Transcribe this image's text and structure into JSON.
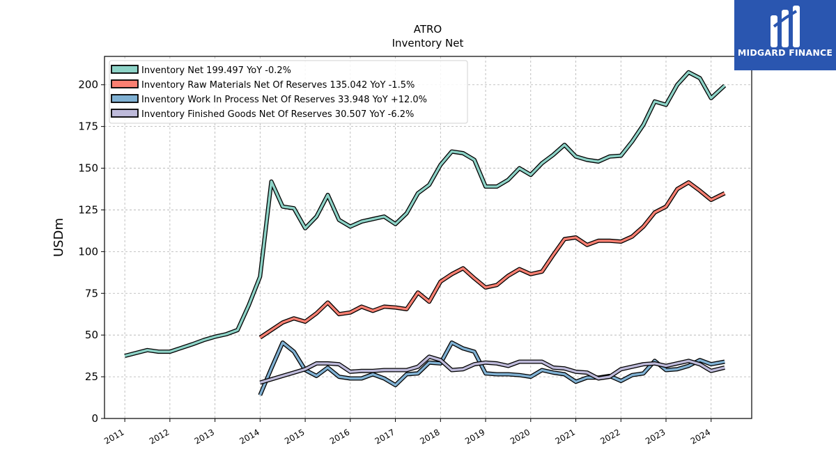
{
  "brand": {
    "name": "MIDGARD FINANCE",
    "logo_icon": "midgard-logo-icon",
    "bg_color": "#2a56b0"
  },
  "chart_data": {
    "type": "line",
    "title": "ATRO",
    "subtitle": "Inventory Net",
    "xlabel": "",
    "ylabel": "USDm",
    "xlim": [
      2010.55,
      2024.9
    ],
    "ylim": [
      0,
      217
    ],
    "yticks": [
      0,
      25,
      50,
      75,
      100,
      125,
      150,
      175,
      200
    ],
    "xticks": [
      2011,
      2012,
      2013,
      2014,
      2015,
      2016,
      2017,
      2018,
      2019,
      2020,
      2021,
      2022,
      2023,
      2024
    ],
    "xtick_labels": [
      "2011",
      "2012",
      "2013",
      "2014",
      "2015",
      "2016",
      "2017",
      "2018",
      "2019",
      "2020",
      "2021",
      "2022",
      "2023",
      "2024"
    ],
    "grid": true,
    "legend_position": "top-left",
    "series": [
      {
        "name": "Inventory Net  199.497 YoY -0.2%",
        "color": "#8dd3c7",
        "points": [
          [
            2011.0,
            37.5
          ],
          [
            2011.5,
            41.0
          ],
          [
            2011.75,
            40.0
          ],
          [
            2012.0,
            40.0
          ],
          [
            2012.5,
            44.5
          ],
          [
            2012.75,
            47.0
          ],
          [
            2013.0,
            49.0
          ],
          [
            2013.25,
            50.5
          ],
          [
            2013.5,
            53.0
          ],
          [
            2013.75,
            68.0
          ],
          [
            2014.0,
            85.0
          ],
          [
            2014.25,
            142.0
          ],
          [
            2014.5,
            127.0
          ],
          [
            2014.75,
            126.0
          ],
          [
            2015.0,
            114.0
          ],
          [
            2015.25,
            121.0
          ],
          [
            2015.5,
            134.0
          ],
          [
            2015.75,
            119.0
          ],
          [
            2016.0,
            115.0
          ],
          [
            2016.25,
            118.0
          ],
          [
            2016.5,
            119.5
          ],
          [
            2016.75,
            121.0
          ],
          [
            2017.0,
            116.5
          ],
          [
            2017.25,
            123.0
          ],
          [
            2017.5,
            135.0
          ],
          [
            2017.75,
            140.0
          ],
          [
            2018.0,
            152.0
          ],
          [
            2018.25,
            160.0
          ],
          [
            2018.5,
            159.0
          ],
          [
            2018.75,
            155.0
          ],
          [
            2019.0,
            139.0
          ],
          [
            2019.25,
            139.0
          ],
          [
            2019.5,
            143.0
          ],
          [
            2019.75,
            150.0
          ],
          [
            2020.0,
            146.0
          ],
          [
            2020.25,
            153.0
          ],
          [
            2020.5,
            158.0
          ],
          [
            2020.75,
            164.0
          ],
          [
            2021.0,
            157.0
          ],
          [
            2021.25,
            155.0
          ],
          [
            2021.5,
            154.0
          ],
          [
            2021.75,
            157.0
          ],
          [
            2022.0,
            157.5
          ],
          [
            2022.25,
            166.0
          ],
          [
            2022.5,
            176.0
          ],
          [
            2022.75,
            190.0
          ],
          [
            2023.0,
            188.0
          ],
          [
            2023.25,
            200.0
          ],
          [
            2023.5,
            207.5
          ],
          [
            2023.75,
            204.0
          ],
          [
            2024.0,
            192.0
          ],
          [
            2024.3,
            199.5
          ]
        ]
      },
      {
        "name": "Inventory Raw Materials Net Of Reserves  135.042 YoY -1.5%",
        "color": "#fb8072",
        "points": [
          [
            2014.0,
            48.5
          ],
          [
            2014.25,
            53.0
          ],
          [
            2014.5,
            57.5
          ],
          [
            2014.75,
            60.0
          ],
          [
            2015.0,
            58.0
          ],
          [
            2015.25,
            63.0
          ],
          [
            2015.5,
            69.5
          ],
          [
            2015.75,
            62.5
          ],
          [
            2016.0,
            63.5
          ],
          [
            2016.25,
            67.0
          ],
          [
            2016.5,
            64.5
          ],
          [
            2016.75,
            67.0
          ],
          [
            2017.0,
            66.5
          ],
          [
            2017.25,
            65.5
          ],
          [
            2017.5,
            75.5
          ],
          [
            2017.75,
            70.0
          ],
          [
            2018.0,
            82.0
          ],
          [
            2018.25,
            86.5
          ],
          [
            2018.5,
            90.0
          ],
          [
            2018.75,
            84.0
          ],
          [
            2019.0,
            78.5
          ],
          [
            2019.25,
            80.0
          ],
          [
            2019.5,
            85.5
          ],
          [
            2019.75,
            89.5
          ],
          [
            2020.0,
            86.5
          ],
          [
            2020.25,
            88.0
          ],
          [
            2020.5,
            98.0
          ],
          [
            2020.75,
            107.5
          ],
          [
            2021.0,
            108.5
          ],
          [
            2021.25,
            104.0
          ],
          [
            2021.5,
            106.5
          ],
          [
            2021.75,
            106.5
          ],
          [
            2022.0,
            106.0
          ],
          [
            2022.25,
            109.0
          ],
          [
            2022.5,
            115.0
          ],
          [
            2022.75,
            123.5
          ],
          [
            2023.0,
            127.0
          ],
          [
            2023.25,
            137.5
          ],
          [
            2023.5,
            141.5
          ],
          [
            2023.75,
            136.5
          ],
          [
            2024.0,
            131.0
          ],
          [
            2024.3,
            135.0
          ]
        ]
      },
      {
        "name": "Inventory Work In Process Net Of Reserves  33.948 YoY +12.0%",
        "color": "#80b1d3",
        "points": [
          [
            2014.0,
            14.0
          ],
          [
            2014.25,
            30.0
          ],
          [
            2014.5,
            45.5
          ],
          [
            2014.75,
            40.0
          ],
          [
            2015.0,
            29.0
          ],
          [
            2015.25,
            25.5
          ],
          [
            2015.5,
            30.5
          ],
          [
            2015.75,
            25.0
          ],
          [
            2016.0,
            24.0
          ],
          [
            2016.25,
            24.0
          ],
          [
            2016.5,
            26.5
          ],
          [
            2016.75,
            24.0
          ],
          [
            2017.0,
            20.0
          ],
          [
            2017.25,
            26.5
          ],
          [
            2017.5,
            27.0
          ],
          [
            2017.75,
            33.5
          ],
          [
            2018.0,
            33.0
          ],
          [
            2018.25,
            45.5
          ],
          [
            2018.5,
            42.0
          ],
          [
            2018.75,
            40.0
          ],
          [
            2019.0,
            27.0
          ],
          [
            2019.25,
            26.5
          ],
          [
            2019.5,
            26.5
          ],
          [
            2019.75,
            26.0
          ],
          [
            2020.0,
            25.0
          ],
          [
            2020.25,
            29.0
          ],
          [
            2020.5,
            27.5
          ],
          [
            2020.75,
            26.5
          ],
          [
            2021.0,
            22.0
          ],
          [
            2021.25,
            24.5
          ],
          [
            2021.5,
            24.5
          ],
          [
            2021.75,
            25.5
          ],
          [
            2022.0,
            22.5
          ],
          [
            2022.25,
            26.0
          ],
          [
            2022.5,
            27.0
          ],
          [
            2022.75,
            34.5
          ],
          [
            2023.0,
            29.0
          ],
          [
            2023.25,
            29.5
          ],
          [
            2023.5,
            31.5
          ],
          [
            2023.75,
            35.0
          ],
          [
            2024.0,
            32.5
          ],
          [
            2024.3,
            34.0
          ]
        ]
      },
      {
        "name": "Inventory Finished Goods Net Of Reserves  30.507 YoY -6.2%",
        "color": "#bebada",
        "points": [
          [
            2014.0,
            21.5
          ],
          [
            2014.25,
            23.5
          ],
          [
            2014.5,
            25.5
          ],
          [
            2014.75,
            27.5
          ],
          [
            2015.0,
            29.5
          ],
          [
            2015.25,
            33.0
          ],
          [
            2015.5,
            33.0
          ],
          [
            2015.75,
            32.5
          ],
          [
            2016.0,
            28.0
          ],
          [
            2016.25,
            28.5
          ],
          [
            2016.5,
            28.5
          ],
          [
            2016.75,
            29.0
          ],
          [
            2017.0,
            29.0
          ],
          [
            2017.25,
            29.0
          ],
          [
            2017.5,
            31.0
          ],
          [
            2017.75,
            37.0
          ],
          [
            2018.0,
            35.0
          ],
          [
            2018.25,
            29.0
          ],
          [
            2018.5,
            29.5
          ],
          [
            2018.75,
            32.5
          ],
          [
            2019.0,
            33.5
          ],
          [
            2019.25,
            33.0
          ],
          [
            2019.5,
            31.5
          ],
          [
            2019.75,
            34.0
          ],
          [
            2020.0,
            34.0
          ],
          [
            2020.25,
            34.0
          ],
          [
            2020.5,
            30.5
          ],
          [
            2020.75,
            30.0
          ],
          [
            2021.0,
            28.0
          ],
          [
            2021.25,
            27.5
          ],
          [
            2021.5,
            24.0
          ],
          [
            2021.75,
            25.0
          ],
          [
            2022.0,
            29.5
          ],
          [
            2022.25,
            31.0
          ],
          [
            2022.5,
            32.5
          ],
          [
            2022.75,
            33.0
          ],
          [
            2023.0,
            31.5
          ],
          [
            2023.25,
            33.0
          ],
          [
            2023.5,
            34.5
          ],
          [
            2023.75,
            32.5
          ],
          [
            2024.0,
            28.5
          ],
          [
            2024.3,
            30.5
          ]
        ]
      }
    ]
  }
}
